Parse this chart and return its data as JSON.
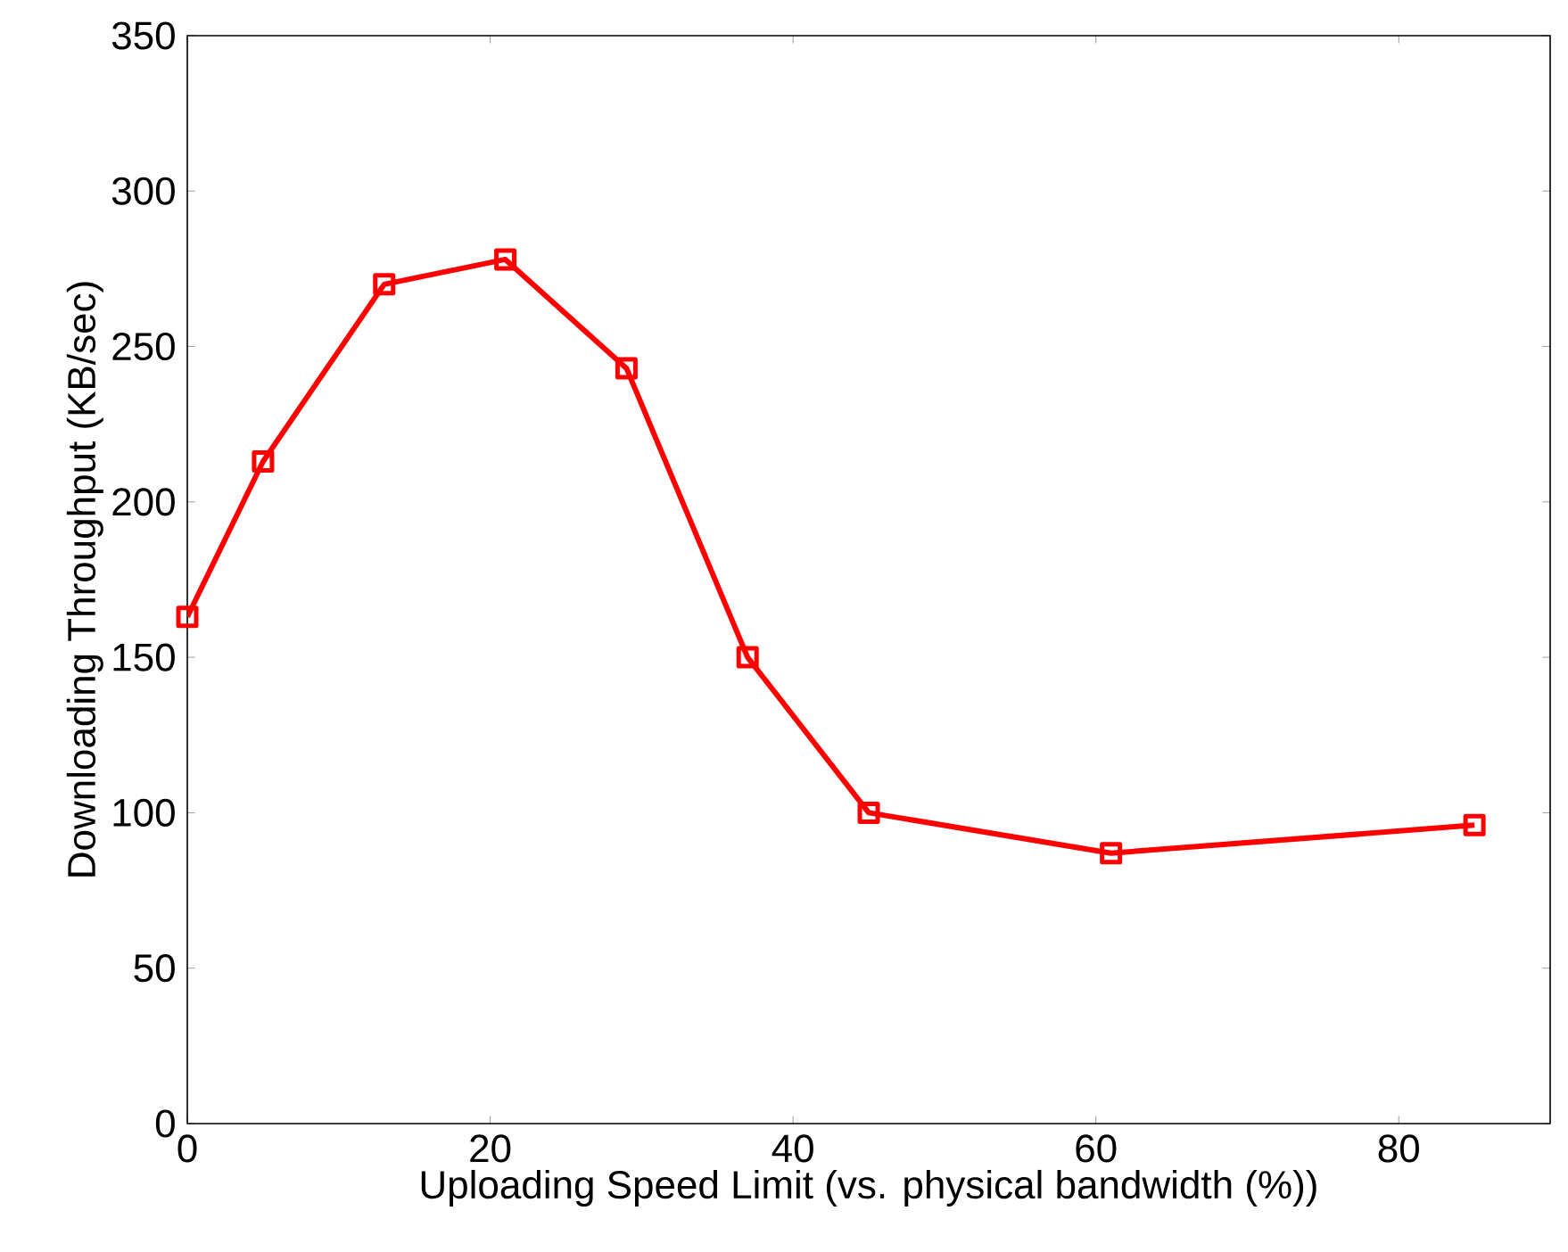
{
  "chart_data": {
    "type": "line",
    "xlabel": "Uploading Speed Limit (vs. physical bandwidth (%))",
    "ylabel": "Downloading Throughput  (KB/sec)",
    "x": [
      0,
      5,
      13,
      21,
      29,
      37,
      45,
      61,
      85
    ],
    "series": [
      {
        "color": "#ff0000",
        "values": [
          163,
          213,
          270,
          278,
          243,
          150,
          100,
          87,
          96
        ]
      }
    ],
    "xlim": [
      0,
      90
    ],
    "ylim": [
      0,
      350
    ],
    "xticks": [
      0,
      20,
      40,
      60,
      80
    ],
    "yticks": [
      0,
      50,
      100,
      150,
      200,
      250,
      300,
      350
    ],
    "marker": "square",
    "line_style": "solid",
    "grid": false
  }
}
